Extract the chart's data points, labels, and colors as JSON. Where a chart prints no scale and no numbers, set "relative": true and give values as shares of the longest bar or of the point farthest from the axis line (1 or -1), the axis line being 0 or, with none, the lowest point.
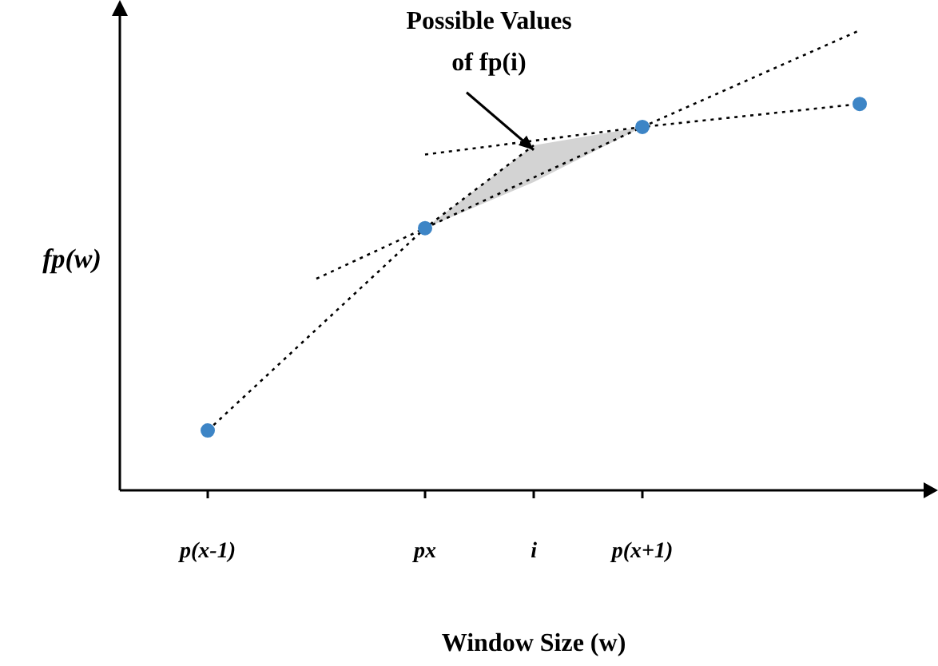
{
  "chart_data": {
    "type": "scatter",
    "relative": true,
    "xlabel": "Window Size (w)",
    "ylabel": "fp(w)",
    "categories": [
      "p(x-1)",
      null,
      "px",
      "i",
      "p(x+1)",
      null,
      null
    ],
    "line_style": "dotted",
    "legend": false,
    "grid": false,
    "series": [
      {
        "marker": "circle",
        "color": "#3d85c6",
        "values": [
          0.13,
          null,
          0.57,
          null,
          0.79,
          null,
          0.84
        ]
      },
      {
        "type": "line",
        "marker": "none",
        "color": "#000000",
        "values": [
          0.13,
          null,
          0.57,
          0.75,
          null,
          null,
          null
        ]
      },
      {
        "type": "line",
        "marker": "none",
        "color": "#000000",
        "values": [
          null,
          0.46,
          0.57,
          null,
          0.79,
          null,
          1
        ],
        "lower": [
          null,
          null,
          0.57,
          0.67,
          0.79,
          null,
          null
        ],
        "upper": [
          null,
          null,
          0.57,
          0.75,
          0.79,
          null,
          null
        ]
      },
      {
        "type": "line",
        "marker": "none",
        "color": "#000000",
        "values": [
          null,
          null,
          0.73,
          null,
          0.79,
          null,
          0.84
        ]
      }
    ],
    "annotations": [
      {
        "text": "Possible Values\nof fp(i)",
        "x": "i",
        "y": 0.74
      }
    ]
  }
}
